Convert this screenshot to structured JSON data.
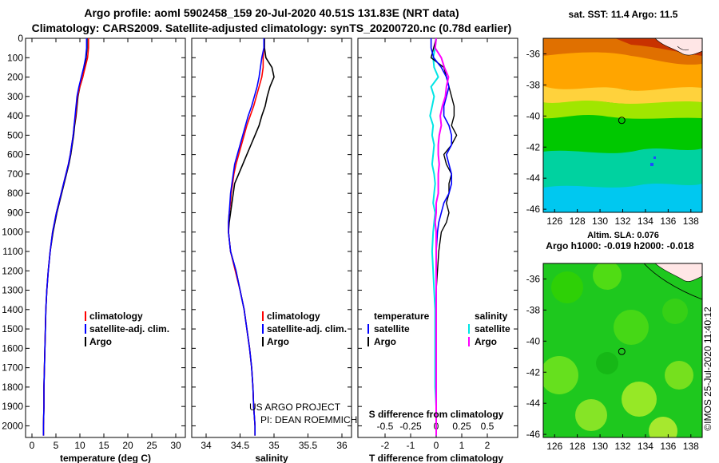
{
  "header": {
    "title_line1": "Argo profile: aoml 5902458_159 20-Jul-2020 40.51S 131.83E (NRT data)",
    "title_line2": "Climatology: CARS2009. Satellite-adjusted climatology: synTS_20200720.nc (0.78d earlier)"
  },
  "colors": {
    "climatology": "#ff0000",
    "satellite": "#0000ff",
    "argo": "#000000",
    "sat_salinity": "#00e5e5",
    "argo_salinity": "#ff00ff"
  },
  "depth_axis": {
    "ticks": [
      "0",
      "100",
      "200",
      "300",
      "400",
      "500",
      "600",
      "700",
      "800",
      "900",
      "1000",
      "1100",
      "1200",
      "1300",
      "1400",
      "1500",
      "1600",
      "1700",
      "1800",
      "1900",
      "2000"
    ]
  },
  "panels": {
    "temperature": {
      "xlabel": "temperature (deg C)",
      "ticks": [
        "0",
        "5",
        "10",
        "15",
        "20",
        "25",
        "30"
      ]
    },
    "salinity": {
      "xlabel": "salinity",
      "ticks": [
        "34",
        "34.5",
        "35",
        "35.5",
        "36"
      ]
    },
    "difference": {
      "xlabel": "T difference from climatology",
      "ticks": [
        "-2",
        "-1",
        "0",
        "1",
        "2"
      ],
      "s_title": "S difference from climatology",
      "s_ticks": [
        "-0.5",
        "-0.25",
        "0",
        "0.25",
        "0.5"
      ]
    }
  },
  "legend": {
    "climatology": "climatology",
    "satellite_adj": "satellite-adj. clim.",
    "argo": "Argo",
    "temperature_head": "temperature",
    "salinity_head": "salinity",
    "satellite": "satellite"
  },
  "credit": {
    "line1": "US ARGO PROJECT",
    "line2": "PI: DEAN ROEMMICH"
  },
  "maps": {
    "sst_title": "sat. SST: 11.4 Argo: 11.5",
    "sla_title": "Altim. SLA: 0.076",
    "h_title": "Argo h1000: -0.019 h2000: -0.018",
    "lon_ticks": [
      "126",
      "128",
      "130",
      "132",
      "134",
      "136",
      "138"
    ],
    "lat_ticks": [
      "-36",
      "-38",
      "-40",
      "-42",
      "-44",
      "-46"
    ]
  },
  "footer": {
    "stamp": "©IMOS 25-Jul-2020 11:40:12"
  },
  "chart_data": {
    "type": "line",
    "depth": [
      0,
      50,
      100,
      150,
      200,
      250,
      300,
      350,
      400,
      450,
      500,
      550,
      600,
      650,
      700,
      750,
      800,
      850,
      900,
      950,
      1000,
      1100,
      1200,
      1300,
      1400,
      1500,
      1600,
      1700,
      1800,
      1900,
      2000,
      2050
    ],
    "temperature": {
      "argo": [
        11.5,
        11.5,
        11.3,
        11.0,
        10.6,
        10.0,
        9.6,
        9.4,
        9.2,
        8.9,
        8.7,
        8.4,
        8.1,
        7.7,
        7.2,
        6.7,
        6.2,
        5.7,
        5.2,
        4.8,
        4.4,
        3.8,
        3.4,
        3.1,
        2.9,
        2.8,
        2.7,
        2.6,
        2.5,
        2.5,
        2.4,
        2.4
      ],
      "climatology": [
        11.8,
        11.8,
        11.6,
        11.1,
        10.6,
        10.0,
        9.5,
        9.3,
        9.1,
        8.8,
        8.6,
        8.3,
        8.0,
        7.6,
        7.1,
        6.6,
        6.1,
        5.6,
        5.1,
        4.7,
        4.3,
        3.8,
        3.4,
        3.1,
        2.9,
        2.8,
        2.7,
        2.6,
        2.5,
        2.5,
        2.4,
        2.4
      ],
      "satellite": [
        11.4,
        11.4,
        11.2,
        10.8,
        10.3,
        9.8,
        9.4,
        9.2,
        9.0,
        8.8,
        8.6,
        8.3,
        8.0,
        7.6,
        7.1,
        6.6,
        6.1,
        5.6,
        5.1,
        4.7,
        4.3,
        3.8,
        3.4,
        3.1,
        2.9,
        2.8,
        2.7,
        2.6,
        2.5,
        2.5,
        2.4,
        2.4
      ]
    },
    "salinity": {
      "argo": [
        34.86,
        34.86,
        34.88,
        34.97,
        35.0,
        34.94,
        34.9,
        34.87,
        34.82,
        34.78,
        34.72,
        34.66,
        34.6,
        34.54,
        34.48,
        34.42,
        34.4,
        34.38,
        34.36,
        34.34,
        34.33,
        34.36,
        34.44,
        34.5,
        34.56,
        34.6,
        34.64,
        34.67,
        34.69,
        34.7,
        34.72,
        34.72
      ],
      "climatology": [
        34.85,
        34.85,
        34.84,
        34.84,
        34.82,
        34.78,
        34.74,
        34.7,
        34.65,
        34.6,
        34.56,
        34.52,
        34.48,
        34.44,
        34.41,
        34.39,
        34.37,
        34.36,
        34.34,
        34.33,
        34.33,
        34.36,
        34.43,
        34.5,
        34.56,
        34.6,
        34.64,
        34.67,
        34.69,
        34.7,
        34.72,
        34.72
      ],
      "satellite": [
        34.85,
        34.85,
        34.82,
        34.8,
        34.78,
        34.75,
        34.71,
        34.67,
        34.62,
        34.58,
        34.54,
        34.5,
        34.46,
        34.42,
        34.4,
        34.38,
        34.36,
        34.35,
        34.34,
        34.33,
        34.33,
        34.36,
        34.44,
        34.5,
        34.56,
        34.6,
        34.64,
        34.67,
        34.69,
        34.7,
        34.72,
        34.72
      ]
    },
    "t_diff": {
      "argo": [
        0.0,
        -0.1,
        -0.2,
        0.3,
        0.4,
        0.5,
        0.6,
        0.7,
        0.7,
        0.6,
        0.8,
        0.6,
        0.3,
        0.4,
        0.6,
        0.5,
        0.5,
        0.4,
        0.5,
        0.4,
        0.2,
        0.1,
        0.05,
        0.0,
        0.0,
        0.0,
        0.0,
        0.0,
        0.0,
        0.0,
        0.0,
        0.0
      ],
      "satellite": [
        -0.2,
        -0.2,
        -0.1,
        0.2,
        0.4,
        0.5,
        0.4,
        0.3,
        0.3,
        0.5,
        0.6,
        0.6,
        0.4,
        0.5,
        0.6,
        0.6,
        0.5,
        0.3,
        0.2,
        0.1,
        0.05,
        0.0,
        0.0,
        0.0,
        0.0,
        0.0,
        0.0,
        0.0,
        0.0,
        0.0,
        0.0,
        0.0
      ]
    },
    "s_diff": {
      "argo": [
        0.0,
        -0.01,
        0.05,
        0.08,
        0.12,
        0.1,
        0.09,
        0.06,
        0.04,
        0.05,
        0.03,
        0.02,
        0.02,
        0.03,
        0.02,
        0.02,
        0.02,
        0.0,
        0.0,
        -0.01,
        0.0,
        0.0,
        0.0,
        0.0,
        0.0,
        0.0,
        0.0,
        0.0,
        0.0,
        0.0,
        0.0,
        0.0
      ],
      "satellite": [
        0.0,
        -0.01,
        -0.03,
        -0.02,
        0.02,
        -0.05,
        -0.02,
        -0.04,
        -0.06,
        -0.03,
        -0.04,
        -0.02,
        -0.03,
        -0.04,
        -0.02,
        -0.01,
        -0.02,
        -0.03,
        -0.01,
        -0.02,
        -0.03,
        -0.04,
        -0.03,
        -0.02,
        -0.01,
        -0.01,
        -0.01,
        -0.01,
        -0.01,
        0.0,
        0.0,
        0.0
      ]
    },
    "ylim": [
      2060,
      0
    ]
  }
}
